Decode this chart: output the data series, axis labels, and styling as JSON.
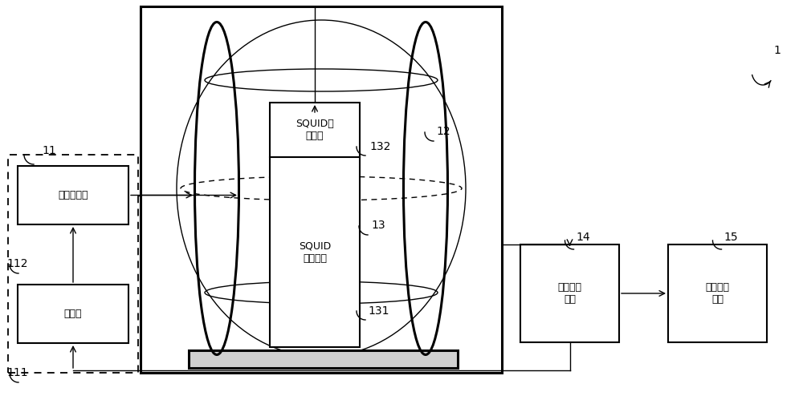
{
  "bg_color": "#ffffff",
  "line_color": "#000000",
  "label_1": "1",
  "label_11": "11",
  "label_111": "111",
  "label_112": "112",
  "label_12": "12",
  "label_13": "13",
  "label_131": "131",
  "label_132": "132",
  "label_14": "14",
  "label_15": "15",
  "text_gonglv": "功率放大器",
  "text_xinhao": "信号源",
  "text_squid_readout": "SQUID读\n出电路",
  "text_squid_measure": "SQUID\n测量组件",
  "text_celiangkongzhi": "测量控制\n模块",
  "text_chuanrao": "串扰标定\n模块",
  "fig_width": 10.0,
  "fig_height": 4.99
}
